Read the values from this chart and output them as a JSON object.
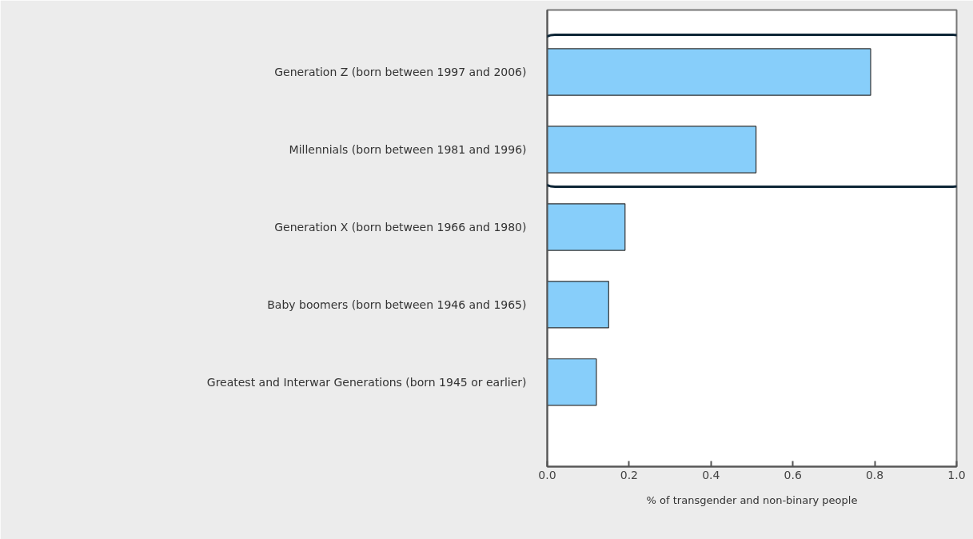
{
  "chart_data": {
    "type": "bar",
    "orientation": "horizontal",
    "categories": [
      "Generation Z (born between 1997 and 2006)",
      "Millennials (born between 1981 and 1996)",
      "Generation X (born between 1966 and 1980)",
      "Baby boomers (born between 1946 and 1965)",
      "Greatest and Interwar Generations (born 1945 or earlier)"
    ],
    "values": [
      0.79,
      0.51,
      0.19,
      0.15,
      0.12
    ],
    "color": "#87cefa",
    "xlabel": "% of transgender and non-binary people",
    "xlim": [
      0,
      1.0
    ],
    "xticks": [
      {
        "value": 0,
        "label": "0.0"
      },
      0.2,
      0.4,
      0.6,
      0.8,
      {
        "value": 1.0,
        "label": "1.0"
      }
    ],
    "grid": false
  }
}
